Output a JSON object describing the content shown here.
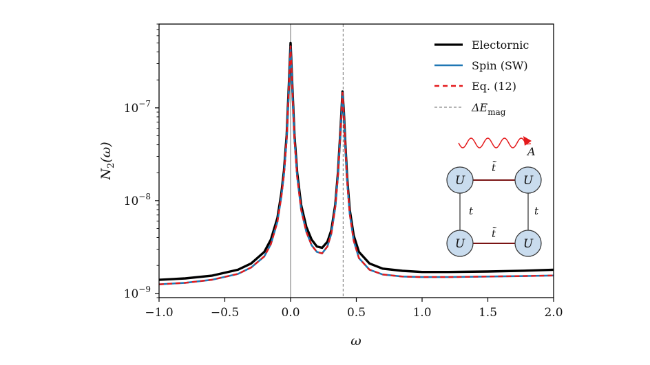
{
  "chart_data": {
    "type": "line",
    "xlabel": "ω",
    "ylabel_base": "N",
    "ylabel_sub": "2",
    "ylabel_arg": "(ω)",
    "xlim": [
      -1.0,
      2.0
    ],
    "ylim": [
      9e-10,
      8e-07
    ],
    "yscale": "log",
    "xticks": [
      -1.0,
      -0.5,
      0.0,
      0.5,
      1.0,
      1.5,
      2.0
    ],
    "xtick_labels": [
      "−1.0",
      "−0.5",
      "0.0",
      "0.5",
      "1.0",
      "1.5",
      "2.0"
    ],
    "yticks": [
      1e-09,
      1e-08,
      1e-07
    ],
    "ytick_labels": [
      {
        "base": "10",
        "exp": "−9"
      },
      {
        "base": "10",
        "exp": "−8"
      },
      {
        "base": "10",
        "exp": "−7"
      }
    ],
    "grid": false,
    "legend_position": "top-right",
    "vlines": [
      {
        "x": 0.0,
        "style": "solid",
        "color": "#888888"
      },
      {
        "x": 0.4,
        "style": "dashed",
        "color": "#888888"
      }
    ],
    "series": [
      {
        "name": "Electornic",
        "color": "#000000",
        "style": "solid",
        "x": [
          -1.0,
          -0.8,
          -0.6,
          -0.4,
          -0.3,
          -0.2,
          -0.15,
          -0.1,
          -0.07,
          -0.05,
          -0.03,
          -0.015,
          0.0,
          0.015,
          0.03,
          0.05,
          0.08,
          0.12,
          0.16,
          0.2,
          0.24,
          0.28,
          0.31,
          0.34,
          0.36,
          0.375,
          0.385,
          0.395,
          0.405,
          0.415,
          0.43,
          0.45,
          0.48,
          0.52,
          0.6,
          0.7,
          0.85,
          1.0,
          1.2,
          1.5,
          1.8,
          2.0
        ],
        "y": [
          1.4e-09,
          1.45e-09,
          1.55e-09,
          1.8e-09,
          2.1e-09,
          2.8e-09,
          3.8e-09,
          6.5e-09,
          1.2e-08,
          2.1e-08,
          5e-08,
          1.5e-07,
          5e-07,
          1.5e-07,
          5e-08,
          2e-08,
          9e-09,
          5.2e-09,
          3.8e-09,
          3.2e-09,
          3.1e-09,
          3.6e-09,
          4.8e-09,
          9e-09,
          2e-08,
          4.5e-08,
          8e-08,
          1.5e-07,
          9e-08,
          4.5e-08,
          1.8e-08,
          8e-09,
          4.2e-09,
          2.8e-09,
          2.1e-09,
          1.85e-09,
          1.75e-09,
          1.7e-09,
          1.7e-09,
          1.72e-09,
          1.76e-09,
          1.8e-09
        ]
      },
      {
        "name": "Spin (SW)",
        "color": "#1f77b4",
        "style": "solid",
        "x": [
          -1.0,
          -0.8,
          -0.6,
          -0.4,
          -0.3,
          -0.2,
          -0.15,
          -0.1,
          -0.07,
          -0.05,
          -0.03,
          -0.015,
          0.0,
          0.015,
          0.03,
          0.05,
          0.08,
          0.12,
          0.16,
          0.2,
          0.24,
          0.28,
          0.31,
          0.34,
          0.36,
          0.375,
          0.385,
          0.395,
          0.405,
          0.415,
          0.43,
          0.45,
          0.48,
          0.52,
          0.6,
          0.7,
          0.85,
          1.0,
          1.2,
          1.5,
          1.8,
          2.0
        ],
        "y": [
          1.25e-09,
          1.3e-09,
          1.4e-09,
          1.62e-09,
          1.9e-09,
          2.5e-09,
          3.4e-09,
          5.9e-09,
          1.1e-08,
          1.9e-08,
          4.6e-08,
          1.4e-07,
          4.6e-07,
          1.4e-07,
          4.6e-08,
          1.8e-08,
          8e-09,
          4.6e-09,
          3.3e-09,
          2.8e-09,
          2.7e-09,
          3.2e-09,
          4.4e-09,
          8.5e-09,
          1.9e-08,
          4.3e-08,
          7.6e-08,
          1.45e-07,
          8.5e-08,
          4.2e-08,
          1.65e-08,
          7.2e-09,
          3.7e-09,
          2.4e-09,
          1.8e-09,
          1.6e-09,
          1.52e-09,
          1.5e-09,
          1.5e-09,
          1.52e-09,
          1.54e-09,
          1.56e-09
        ]
      },
      {
        "name": "Eq. (12)",
        "color": "#e41a1c",
        "style": "dashed",
        "x": [
          -1.0,
          -0.8,
          -0.6,
          -0.4,
          -0.3,
          -0.2,
          -0.15,
          -0.1,
          -0.07,
          -0.05,
          -0.03,
          -0.015,
          0.0,
          0.015,
          0.03,
          0.05,
          0.08,
          0.12,
          0.16,
          0.2,
          0.24,
          0.28,
          0.31,
          0.34,
          0.36,
          0.375,
          0.385,
          0.395,
          0.405,
          0.415,
          0.43,
          0.45,
          0.48,
          0.52,
          0.6,
          0.7,
          0.85,
          1.0,
          1.2,
          1.5,
          1.8,
          2.0
        ],
        "y": [
          1.25e-09,
          1.3e-09,
          1.4e-09,
          1.62e-09,
          1.9e-09,
          2.5e-09,
          3.4e-09,
          5.9e-09,
          1.1e-08,
          1.9e-08,
          4.6e-08,
          1.4e-07,
          4.6e-07,
          1.4e-07,
          4.6e-08,
          1.8e-08,
          8e-09,
          4.6e-09,
          3.3e-09,
          2.8e-09,
          2.7e-09,
          3.2e-09,
          4.4e-09,
          8.5e-09,
          1.9e-08,
          4.3e-08,
          7.6e-08,
          1.45e-07,
          8.5e-08,
          4.2e-08,
          1.65e-08,
          7.2e-09,
          3.7e-09,
          2.4e-09,
          1.8e-09,
          1.6e-09,
          1.52e-09,
          1.5e-09,
          1.5e-09,
          1.52e-09,
          1.54e-09,
          1.56e-09
        ]
      }
    ],
    "legend": [
      {
        "label": "Electornic",
        "color": "#000000",
        "style": "solid"
      },
      {
        "label": "Spin (SW)",
        "color": "#1f77b4",
        "style": "solid"
      },
      {
        "label": "Eq. (12)",
        "color": "#e41a1c",
        "style": "dashed"
      },
      {
        "label_base": "ΔE",
        "label_sub": "mag",
        "color": "#888888",
        "style": "dashed"
      }
    ],
    "inset": {
      "site_label": "U",
      "hop_horizontal": "t̃",
      "hop_vertical": "t",
      "field_label": "A",
      "site_fill": "#c9dcee",
      "bond_horizontal_color": "#7a1414",
      "bond_vertical_color": "#555555",
      "wave_color": "#e41a1c"
    }
  }
}
